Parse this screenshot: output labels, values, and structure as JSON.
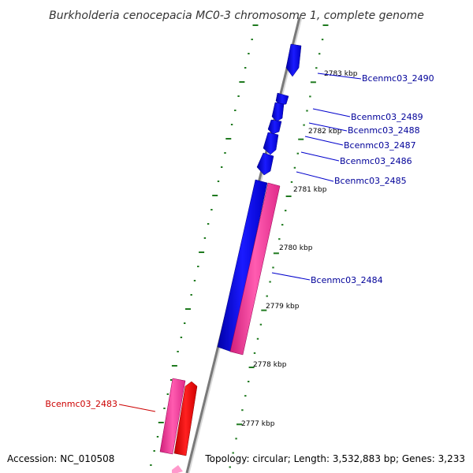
{
  "title": "Burkholderia cenocepacia MC0-3 chromosome 1, complete genome",
  "footer": {
    "accession": "Accession: NC_010508",
    "summary": "Topology: circular; Length: 3,532,883 bp; Genes: 3,233"
  },
  "colors": {
    "backbone": "#808080",
    "tick_marks": "#1f7a1f",
    "forward_gene": "#0000ee",
    "reverse_gene": "#ff3399",
    "highlight_gene": "#ff0000",
    "label_forward": "#000099",
    "label_reverse": "#cc0000"
  },
  "scale_labels": [
    "2783 kbp",
    "2782 kbp",
    "2781 kbp",
    "2780 kbp",
    "2779 kbp",
    "2778 kbp",
    "2777 kbp"
  ],
  "genes": [
    {
      "id": "Bcenmc03_2490",
      "strand": "forward"
    },
    {
      "id": "Bcenmc03_2489",
      "strand": "forward"
    },
    {
      "id": "Bcenmc03_2488",
      "strand": "forward"
    },
    {
      "id": "Bcenmc03_2487",
      "strand": "forward"
    },
    {
      "id": "Bcenmc03_2486",
      "strand": "forward"
    },
    {
      "id": "Bcenmc03_2485",
      "strand": "forward"
    },
    {
      "id": "Bcenmc03_2484",
      "strand": "forward"
    },
    {
      "id": "Bcenmc03_2483",
      "strand": "reverse"
    }
  ]
}
